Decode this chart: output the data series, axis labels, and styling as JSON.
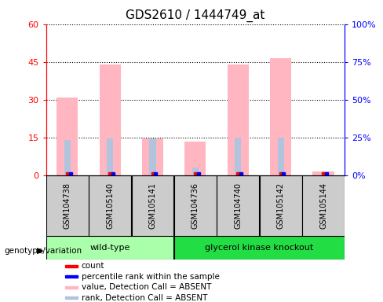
{
  "title": "GDS2610 / 1444749_at",
  "samples": [
    "GSM104738",
    "GSM105140",
    "GSM105141",
    "GSM104736",
    "GSM104740",
    "GSM105142",
    "GSM105144"
  ],
  "wt_count": 3,
  "ko_count": 4,
  "wt_label": "wild-type",
  "ko_label": "glycerol kinase knockout",
  "wt_color": "#aaffaa",
  "ko_color": "#22dd44",
  "absent_value_bars": [
    31,
    44,
    14.5,
    13.5,
    44,
    46.5,
    1.5
  ],
  "absent_rank_bars": [
    14,
    14.5,
    14.5,
    3,
    15,
    15,
    0.5
  ],
  "ylim_left": [
    0,
    60
  ],
  "ylim_right": [
    0,
    100
  ],
  "yticks_left": [
    0,
    15,
    30,
    45,
    60
  ],
  "yticks_right": [
    0,
    25,
    50,
    75,
    100
  ],
  "ytick_labels_right": [
    "0%",
    "25%",
    "50%",
    "75%",
    "100%"
  ],
  "absent_value_color": "#FFB6C1",
  "absent_rank_color": "#B0C4DE",
  "present_value_color": "#FF0000",
  "present_rank_color": "#0000FF",
  "sample_box_color": "#cccccc",
  "legend_items": [
    {
      "label": "count",
      "color": "#FF0000"
    },
    {
      "label": "percentile rank within the sample",
      "color": "#0000FF"
    },
    {
      "label": "value, Detection Call = ABSENT",
      "color": "#FFB6C1"
    },
    {
      "label": "rank, Detection Call = ABSENT",
      "color": "#B0C4DE"
    }
  ],
  "genotype_label": "genotype/variation"
}
